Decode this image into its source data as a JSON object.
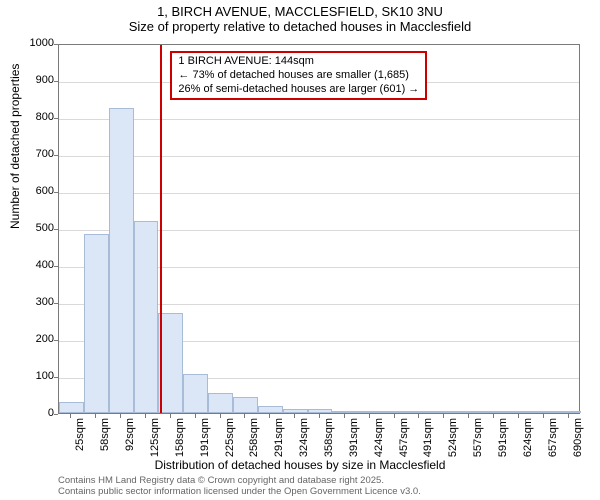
{
  "title1": "1, BIRCH AVENUE, MACCLESFIELD, SK10 3NU",
  "title2": "Size of property relative to detached houses in Macclesfield",
  "chart": {
    "type": "histogram",
    "ylabel": "Number of detached properties",
    "xlabel": "Distribution of detached houses by size in Macclesfield",
    "ylim": [
      0,
      1000
    ],
    "ytick_step": 100,
    "background_color": "#ffffff",
    "grid_color": "#d9d9d9",
    "border_color": "#7a7a7a",
    "bar_fill": "#dbe7f7",
    "bar_border": "#a8bcd8",
    "marker_line_color": "#cc0000",
    "marker_line_x": 144,
    "x_categories": [
      "25sqm",
      "58sqm",
      "92sqm",
      "125sqm",
      "158sqm",
      "191sqm",
      "225sqm",
      "258sqm",
      "291sqm",
      "324sqm",
      "358sqm",
      "391sqm",
      "424sqm",
      "457sqm",
      "491sqm",
      "524sqm",
      "557sqm",
      "591sqm",
      "624sqm",
      "657sqm",
      "690sqm"
    ],
    "values": [
      30,
      485,
      825,
      520,
      270,
      105,
      55,
      42,
      20,
      12,
      10,
      6,
      4,
      3,
      2,
      2,
      2,
      1,
      1,
      1,
      1
    ],
    "label_fontsize": 12,
    "tick_fontsize": 11
  },
  "annotation": {
    "line1": "1 BIRCH AVENUE: 144sqm",
    "line2": "← 73% of detached houses are smaller (1,685)",
    "line3": "26% of semi-detached houses are larger (601) →",
    "border_color": "#cc0000",
    "background_color": "#ffffff",
    "fontsize": 11
  },
  "footer": {
    "line1": "Contains HM Land Registry data © Crown copyright and database right 2025.",
    "line2": "Contains public sector information licensed under the Open Government Licence v3.0.",
    "color": "#666666",
    "fontsize": 9.5
  }
}
